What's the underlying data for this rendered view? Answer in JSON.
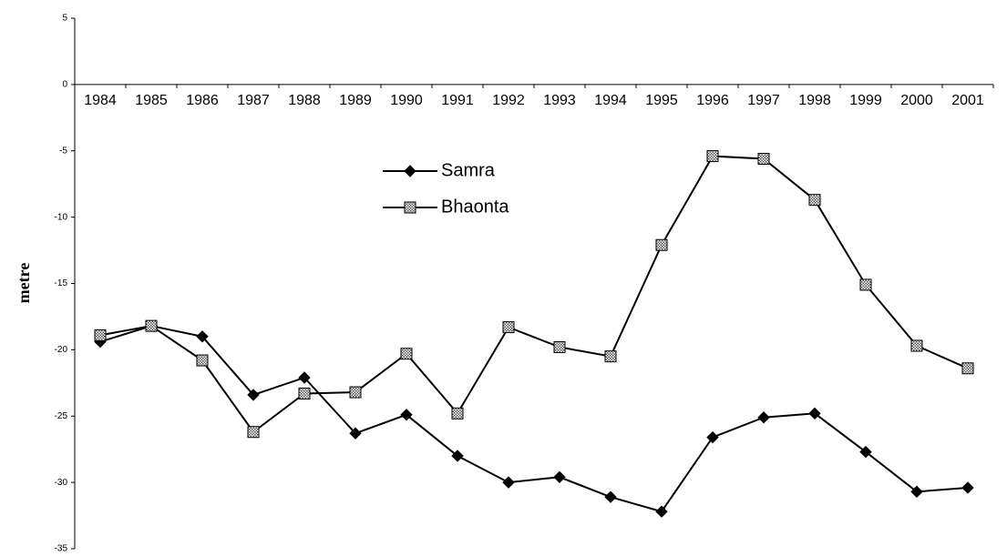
{
  "chart_data": {
    "type": "line",
    "y_label": "metre",
    "categories": [
      "1984",
      "1985",
      "1986",
      "1987",
      "1988",
      "1989",
      "1990",
      "1991",
      "1992",
      "1993",
      "1994",
      "1995",
      "1996",
      "1997",
      "1998",
      "1999",
      "2000",
      "2001"
    ],
    "series": [
      {
        "name": "Samra",
        "color": "#000000",
        "values": [
          -19.4,
          -18.2,
          -19.0,
          -23.4,
          -22.1,
          -26.3,
          -24.9,
          -28.0,
          -30.0,
          -29.6,
          -31.1,
          -32.2,
          -26.6,
          -25.1,
          -24.8,
          -27.7,
          -30.7,
          -30.4
        ]
      },
      {
        "name": "Bhaonta",
        "color": "#000000",
        "values": [
          -18.9,
          -18.2,
          -20.8,
          -26.2,
          -23.3,
          -23.2,
          -20.3,
          -24.8,
          -18.3,
          -19.8,
          -20.5,
          -12.1,
          -5.4,
          -5.6,
          -8.7,
          -15.1,
          -19.7,
          -21.4
        ]
      }
    ],
    "ylim": [
      -35,
      5
    ],
    "yticks": [
      5,
      0,
      -5,
      -10,
      -15,
      -20,
      -25,
      -30,
      -35
    ],
    "grid": false
  }
}
